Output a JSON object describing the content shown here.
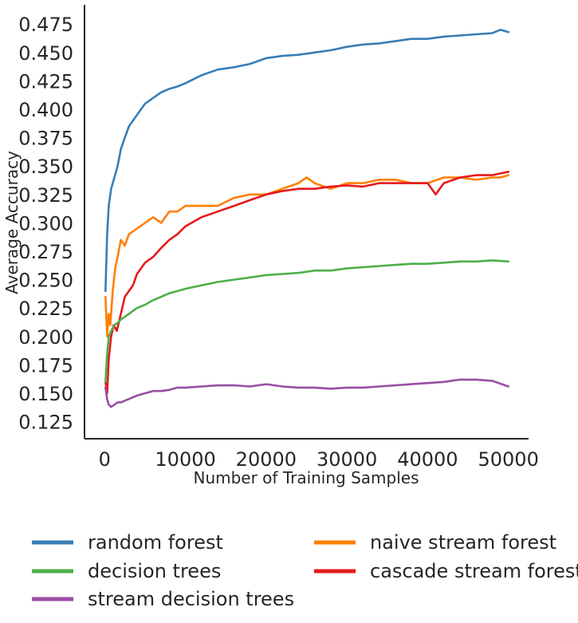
{
  "chart_data": {
    "type": "line",
    "title": "",
    "xlabel": "Number of Training Samples",
    "ylabel": "Average Accuracy",
    "xlim": [
      -2500,
      52500
    ],
    "ylim": [
      0.11,
      0.492
    ],
    "x_ticks": [
      0,
      10000,
      20000,
      30000,
      40000,
      50000
    ],
    "x_tick_labels": [
      "0",
      "10000",
      "20000",
      "30000",
      "40000",
      "50000"
    ],
    "y_ticks": [
      0.125,
      0.15,
      0.175,
      0.2,
      0.225,
      0.25,
      0.275,
      0.3,
      0.325,
      0.35,
      0.375,
      0.4,
      0.425,
      0.45,
      0.475
    ],
    "y_tick_labels": [
      "0.125",
      "0.150",
      "0.175",
      "0.200",
      "0.225",
      "0.250",
      "0.275",
      "0.300",
      "0.325",
      "0.350",
      "0.375",
      "0.400",
      "0.425",
      "0.450",
      "0.475"
    ],
    "grid": false,
    "legend_position": "bottom",
    "series": [
      {
        "name": "random forest",
        "color": "#377eb8",
        "x": [
          100,
          300,
          500,
          800,
          1200,
          1600,
          2000,
          2500,
          3000,
          3500,
          4000,
          5000,
          6000,
          7000,
          8000,
          9000,
          10000,
          12000,
          14000,
          16000,
          18000,
          20000,
          22000,
          24000,
          26000,
          28000,
          30000,
          32000,
          34000,
          36000,
          38000,
          40000,
          42000,
          44000,
          46000,
          48000,
          49000,
          50000
        ],
        "y": [
          0.24,
          0.29,
          0.315,
          0.33,
          0.34,
          0.35,
          0.365,
          0.375,
          0.385,
          0.39,
          0.395,
          0.405,
          0.41,
          0.415,
          0.418,
          0.42,
          0.423,
          0.43,
          0.435,
          0.437,
          0.44,
          0.445,
          0.447,
          0.448,
          0.45,
          0.452,
          0.455,
          0.457,
          0.458,
          0.46,
          0.462,
          0.462,
          0.464,
          0.465,
          0.466,
          0.467,
          0.47,
          0.468
        ]
      },
      {
        "name": "naive stream forest",
        "color": "#ff7f00",
        "x": [
          100,
          300,
          500,
          700,
          1000,
          1300,
          1600,
          2000,
          2500,
          3000,
          4000,
          5000,
          6000,
          7000,
          8000,
          9000,
          10000,
          12000,
          14000,
          16000,
          18000,
          20000,
          22000,
          24000,
          25000,
          26000,
          28000,
          30000,
          32000,
          34000,
          36000,
          38000,
          40000,
          42000,
          44000,
          46000,
          48000,
          49000,
          50000
        ],
        "y": [
          0.235,
          0.2,
          0.22,
          0.21,
          0.24,
          0.26,
          0.27,
          0.285,
          0.28,
          0.29,
          0.295,
          0.3,
          0.305,
          0.3,
          0.31,
          0.31,
          0.315,
          0.315,
          0.315,
          0.322,
          0.325,
          0.325,
          0.33,
          0.335,
          0.34,
          0.335,
          0.33,
          0.335,
          0.335,
          0.338,
          0.338,
          0.335,
          0.335,
          0.34,
          0.34,
          0.338,
          0.34,
          0.34,
          0.342
        ]
      },
      {
        "name": "cascade stream forest",
        "color": "#e41a1c",
        "x": [
          100,
          300,
          500,
          800,
          1100,
          1500,
          2000,
          2500,
          3000,
          3500,
          4000,
          5000,
          6000,
          7000,
          8000,
          9000,
          10000,
          12000,
          14000,
          16000,
          18000,
          20000,
          22000,
          24000,
          26000,
          28000,
          30000,
          32000,
          34000,
          36000,
          38000,
          40000,
          41000,
          42000,
          44000,
          46000,
          48000,
          50000
        ],
        "y": [
          0.16,
          0.15,
          0.18,
          0.2,
          0.21,
          0.205,
          0.22,
          0.235,
          0.24,
          0.245,
          0.255,
          0.265,
          0.27,
          0.278,
          0.285,
          0.29,
          0.297,
          0.305,
          0.31,
          0.315,
          0.32,
          0.325,
          0.328,
          0.33,
          0.33,
          0.332,
          0.333,
          0.332,
          0.335,
          0.335,
          0.335,
          0.335,
          0.325,
          0.335,
          0.34,
          0.342,
          0.342,
          0.345
        ]
      },
      {
        "name": "decision trees",
        "color": "#4daf4a",
        "x": [
          100,
          300,
          500,
          800,
          1200,
          1600,
          2000,
          3000,
          4000,
          5000,
          6000,
          7000,
          8000,
          9000,
          10000,
          12000,
          14000,
          16000,
          18000,
          20000,
          22000,
          24000,
          26000,
          28000,
          30000,
          32000,
          34000,
          36000,
          38000,
          40000,
          42000,
          44000,
          46000,
          48000,
          50000
        ],
        "y": [
          0.16,
          0.185,
          0.2,
          0.205,
          0.21,
          0.212,
          0.215,
          0.22,
          0.225,
          0.228,
          0.232,
          0.235,
          0.238,
          0.24,
          0.242,
          0.245,
          0.248,
          0.25,
          0.252,
          0.254,
          0.255,
          0.256,
          0.258,
          0.258,
          0.26,
          0.261,
          0.262,
          0.263,
          0.264,
          0.264,
          0.265,
          0.266,
          0.266,
          0.267,
          0.266
        ]
      },
      {
        "name": "stream decision trees",
        "color": "#984ea3",
        "x": [
          100,
          300,
          500,
          800,
          1200,
          1600,
          2000,
          3000,
          4000,
          5000,
          6000,
          7000,
          8000,
          9000,
          10000,
          12000,
          14000,
          16000,
          18000,
          20000,
          22000,
          24000,
          26000,
          28000,
          30000,
          32000,
          34000,
          36000,
          38000,
          40000,
          42000,
          44000,
          46000,
          48000,
          50000
        ],
        "y": [
          0.155,
          0.145,
          0.14,
          0.138,
          0.14,
          0.142,
          0.142,
          0.145,
          0.148,
          0.15,
          0.152,
          0.152,
          0.153,
          0.155,
          0.155,
          0.156,
          0.157,
          0.157,
          0.156,
          0.158,
          0.156,
          0.155,
          0.155,
          0.154,
          0.155,
          0.155,
          0.156,
          0.157,
          0.158,
          0.159,
          0.16,
          0.162,
          0.162,
          0.161,
          0.156
        ]
      }
    ]
  }
}
